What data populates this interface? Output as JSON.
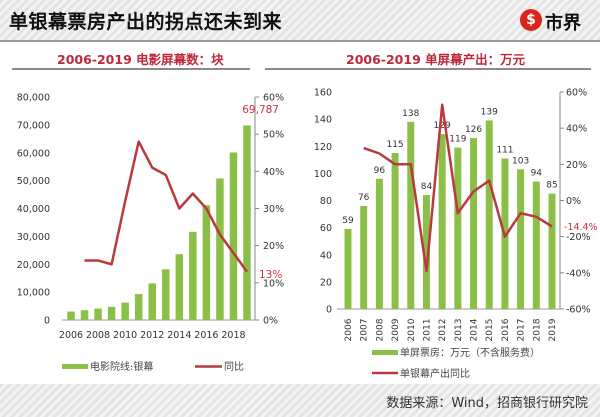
{
  "header": {
    "title": "单银幕票房产出的拐点还未到来",
    "logo_text": "市界",
    "logo_glyph": "$",
    "logo_color": "#d9241b"
  },
  "footer": {
    "source": "数据来源：Wind，招商银行研究院"
  },
  "colors": {
    "bar": "#8cbf47",
    "line": "#b83a3f",
    "highlight": "#d0303f"
  },
  "chart_data": [
    {
      "type": "bar",
      "title": "2006-2019 电影屏幕数：块",
      "categories": [
        "2006",
        "2007",
        "2008",
        "2009",
        "2010",
        "2011",
        "2012",
        "2013",
        "2014",
        "2015",
        "2016",
        "2017",
        "2018",
        "2019"
      ],
      "x_tick_labels": [
        "2006",
        "2008",
        "2010",
        "2012",
        "2014",
        "2016",
        "2018"
      ],
      "series": [
        {
          "name": "电影院线:银幕",
          "axis": "left",
          "type": "bar",
          "values": [
            3034,
            3527,
            4097,
            4723,
            6256,
            9286,
            13118,
            18195,
            23600,
            31627,
            41179,
            50776,
            60079,
            69787
          ]
        },
        {
          "name": "同比",
          "axis": "right",
          "type": "line",
          "values": [
            null,
            16,
            16,
            15,
            32,
            48,
            41,
            39,
            30,
            34,
            30,
            23,
            18,
            13
          ]
        }
      ],
      "ylim_left": [
        0,
        80000
      ],
      "y_ticks_left": [
        "0",
        "10,000",
        "20,000",
        "30,000",
        "40,000",
        "50,000",
        "60,000",
        "70,000",
        "80,000"
      ],
      "ylim_right": [
        0,
        60
      ],
      "y_ticks_right": [
        "0%",
        "10%",
        "20%",
        "30%",
        "40%",
        "50%",
        "60%"
      ],
      "annotations": {
        "last_bar": "69,787",
        "last_line": "13%"
      },
      "legend_position": "bottom"
    },
    {
      "type": "bar",
      "title": "2006-2019 单屏幕产出：万元",
      "categories": [
        "2006",
        "2007",
        "2008",
        "2009",
        "2010",
        "2011",
        "2012",
        "2013",
        "2014",
        "2015",
        "2016",
        "2017",
        "2018",
        "2019"
      ],
      "series": [
        {
          "name": "单屏票房：万元（不含服务费）",
          "axis": "left",
          "type": "bar",
          "values": [
            59,
            76,
            96,
            115,
            138,
            84,
            129,
            119,
            126,
            139,
            111,
            103,
            94,
            85
          ],
          "labels": [
            "59",
            "76",
            "96",
            "115",
            "138",
            "84",
            "129",
            "119",
            "126",
            "139",
            "111",
            "103",
            "94",
            "85"
          ]
        },
        {
          "name": "单银幕产出同比",
          "axis": "right",
          "type": "line",
          "values": [
            null,
            29,
            26,
            20,
            20,
            -39,
            53,
            -7,
            5,
            11,
            -20,
            -7,
            -9,
            -14.4
          ]
        }
      ],
      "ylim_left": [
        0,
        160
      ],
      "y_ticks_left": [
        "0",
        "20",
        "40",
        "60",
        "80",
        "100",
        "120",
        "140",
        "160"
      ],
      "ylim_right": [
        -60,
        60
      ],
      "y_ticks_right": [
        "-60%",
        "-40%",
        "-20%",
        "0%",
        "20%",
        "40%",
        "60%"
      ],
      "annotations": {
        "last_line": "-14.4%"
      },
      "legend_position": "bottom"
    }
  ]
}
